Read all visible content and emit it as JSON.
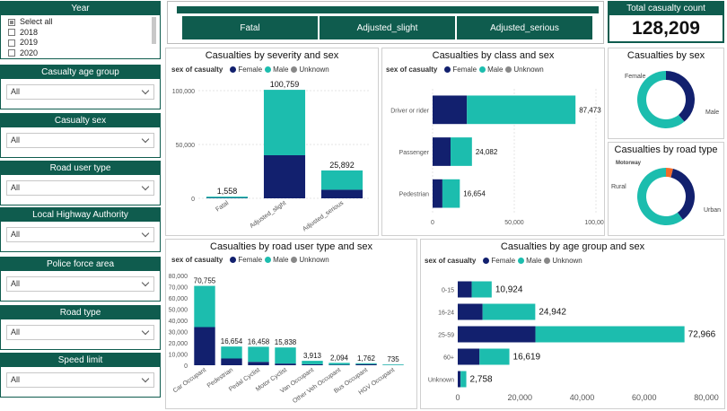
{
  "colors": {
    "dark_green": "#0f5c4e",
    "female": "#12206e",
    "male": "#1cbdae",
    "unknown": "#888888",
    "orange": "#f26b2a"
  },
  "slicers": {
    "year": {
      "title": "Year",
      "items": [
        "Select all",
        "2018",
        "2019",
        "2020"
      ]
    },
    "age_group": {
      "title": "Casualty age group",
      "value": "All"
    },
    "sex": {
      "title": "Casualty sex",
      "value": "All"
    },
    "road_user": {
      "title": "Road user type",
      "value": "All"
    },
    "highway": {
      "title": "Local Highway Authority",
      "value": "All"
    },
    "police": {
      "title": "Police force area",
      "value": "All"
    },
    "road_type": {
      "title": "Road type",
      "value": "All"
    },
    "speed": {
      "title": "Speed limit",
      "value": "All"
    }
  },
  "severity_buttons": [
    "Fatal",
    "Adjusted_slight",
    "Adjusted_serious"
  ],
  "kpi": {
    "title": "Total casualty count",
    "value": "128,209"
  },
  "legend": {
    "label": "sex of casualty",
    "female": "Female",
    "male": "Male",
    "unknown": "Unknown"
  },
  "chart_data": [
    {
      "id": "severity",
      "type": "bar",
      "title": "Casualties by severity and sex",
      "categories": [
        "Fatal",
        "Adjusted_slight",
        "Adjusted_serious"
      ],
      "series": [
        {
          "name": "Female",
          "values": [
            400,
            40000,
            8000
          ]
        },
        {
          "name": "Male",
          "values": [
            1158,
            60759,
            17892
          ]
        }
      ],
      "totals": [
        "1,558",
        "100,759",
        "25,892"
      ],
      "yticks": [
        "0",
        "50,000",
        "100,000"
      ],
      "ylim": [
        0,
        110000
      ]
    },
    {
      "id": "class",
      "type": "bar",
      "orientation": "horizontal",
      "title": "Casualties by class and sex",
      "categories": [
        "Driver or rider",
        "Passenger",
        "Pedestrian"
      ],
      "series": [
        {
          "name": "Female",
          "values": [
            21000,
            11000,
            6000
          ]
        },
        {
          "name": "Male",
          "values": [
            66473,
            13082,
            10654
          ]
        }
      ],
      "totals": [
        "87,473",
        "24,082",
        "16,654"
      ],
      "xticks": [
        "0",
        "50,000",
        "100,000"
      ],
      "xlim": [
        0,
        100000
      ]
    },
    {
      "id": "sex",
      "type": "pie",
      "title": "Casualties by sex",
      "labels": [
        "Female",
        "Male"
      ],
      "values": [
        39,
        61
      ]
    },
    {
      "id": "roadtype",
      "type": "pie",
      "title": "Casualties by road type",
      "labels": [
        "Motorway",
        "Rural",
        "Urban"
      ],
      "values": [
        4,
        36,
        60
      ]
    },
    {
      "id": "roaduser",
      "type": "bar",
      "title": "Casualties by road user type and sex",
      "categories": [
        "Car Occupant",
        "Pedestrian",
        "Pedal Cyclist",
        "Motor Cyclist",
        "Van Occupant",
        "Other Veh Occupant",
        "Bus Occupant",
        "HGV Occupant"
      ],
      "series": [
        {
          "name": "Female",
          "values": [
            34000,
            6000,
            3000,
            1500,
            900,
            500,
            1000,
            150
          ]
        },
        {
          "name": "Male",
          "values": [
            36755,
            10654,
            13458,
            14338,
            3013,
            1594,
            762,
            585
          ]
        }
      ],
      "totals": [
        "70,755",
        "16,654",
        "16,458",
        "15,838",
        "3,913",
        "2,094",
        "1,762",
        "735"
      ],
      "yticks": [
        "0",
        "10,000",
        "20,000",
        "30,000",
        "40,000",
        "50,000",
        "60,000",
        "70,000",
        "80,000"
      ],
      "ylim": [
        0,
        80000
      ]
    },
    {
      "id": "agegroup",
      "type": "bar",
      "orientation": "horizontal",
      "title": "Casualties by age group and sex",
      "categories": [
        "0-15",
        "16-24",
        "25-59",
        "60+",
        "Unknown"
      ],
      "series": [
        {
          "name": "Female",
          "values": [
            4500,
            8000,
            25000,
            7000,
            900
          ]
        },
        {
          "name": "Male",
          "values": [
            6424,
            16942,
            47966,
            9619,
            1858
          ]
        }
      ],
      "totals": [
        "10,924",
        "24,942",
        "72,966",
        "16,619",
        "2,758"
      ],
      "xticks": [
        "0",
        "20,000",
        "40,000",
        "60,000",
        "80,000"
      ],
      "xlim": [
        0,
        80000
      ]
    }
  ]
}
